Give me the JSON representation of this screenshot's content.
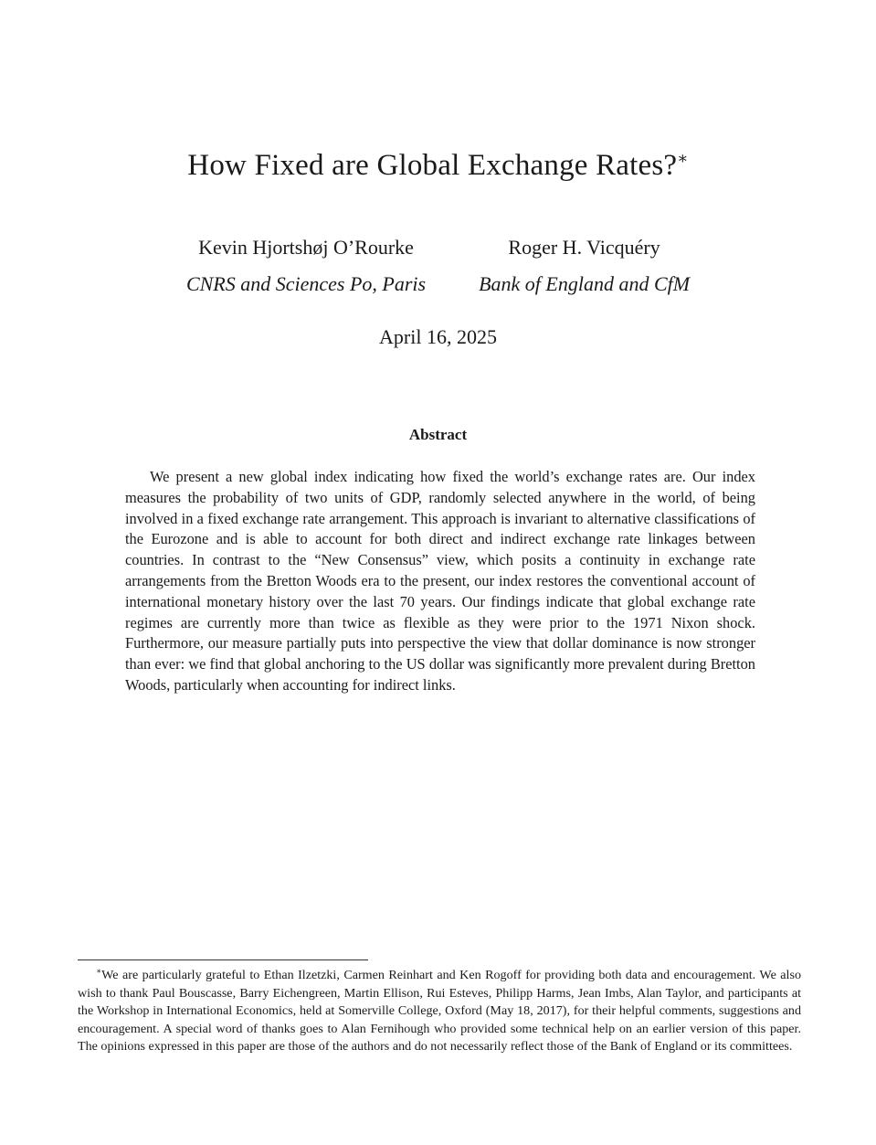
{
  "paper": {
    "title": "How Fixed are Global Exchange Rates?",
    "title_mark": "∗",
    "authors": [
      {
        "name": "Kevin Hjortshøj O’Rourke",
        "affiliation": "CNRS and Sciences Po, Paris"
      },
      {
        "name": "Roger H. Vicquéry",
        "affiliation": "Bank of England and CfM"
      }
    ],
    "date": "April 16, 2025",
    "abstract_heading": "Abstract",
    "abstract": "We present a new global index indicating how fixed the world’s exchange rates are. Our index measures the probability of two units of GDP, randomly selected anywhere in the world, of being involved in a fixed exchange rate arrangement. This approach is invariant to alternative classifications of the Eurozone and is able to account for both direct and indirect exchange rate linkages between countries. In contrast to the “New Consensus” view, which posits a continuity in exchange rate arrangements from the Bretton Woods era to the present, our index restores the conventional account of international monetary history over the last 70 years. Our findings indicate that global exchange rate regimes are currently more than twice as flexible as they were prior to the 1971 Nixon shock. Furthermore, our measure partially puts into perspective the view that dollar dominance is now stronger than ever: we find that global anchoring to the US dollar was significantly more prevalent during Bretton Woods, particularly when accounting for indirect links.",
    "footnote_mark": "∗",
    "footnote": "We are particularly grateful to Ethan Ilzetzki, Carmen Reinhart and Ken Rogoff for providing both data and encouragement. We also wish to thank Paul Bouscasse, Barry Eichengreen, Martin Ellison, Rui Esteves, Philipp Harms, Jean Imbs, Alan Taylor, and participants at the Workshop in International Economics, held at Somerville College, Oxford (May 18, 2017), for their helpful comments, suggestions and encouragement. A special word of thanks goes to Alan Fernihough who provided some technical help on an earlier version of this paper. The opinions expressed in this paper are those of the authors and do not necessarily reflect those of the Bank of England or its committees."
  }
}
